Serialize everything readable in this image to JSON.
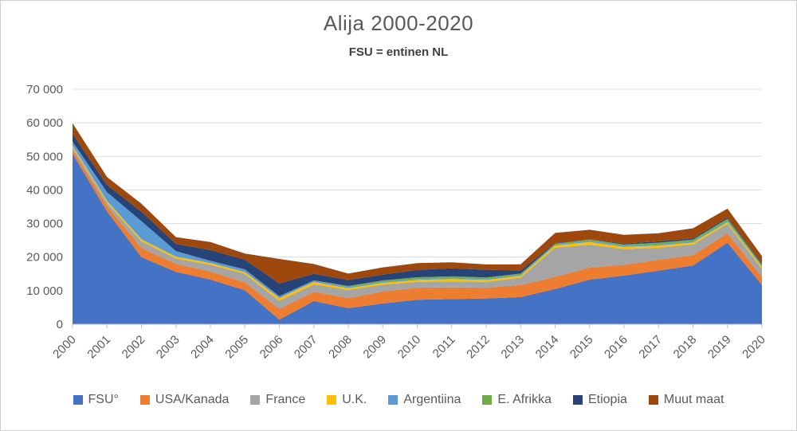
{
  "title": "Alija 2000-2020",
  "subtitle": "FSU = entinen NL",
  "chart_data": {
    "type": "area",
    "stacked": true,
    "title": "Alija 2000-2020",
    "subtitle": "FSU = entinen NL",
    "xlabel": "",
    "ylabel": "",
    "ylim": [
      0,
      70000
    ],
    "ytick_step": 10000,
    "ytick_labels": [
      "0",
      "10 000",
      "20 000",
      "30 000",
      "40 000",
      "50 000",
      "60 000",
      "70 000"
    ],
    "grid": true,
    "legend_position": "bottom",
    "x": [
      2000,
      2001,
      2002,
      2003,
      2004,
      2005,
      2006,
      2007,
      2008,
      2009,
      2010,
      2011,
      2012,
      2013,
      2014,
      2015,
      2016,
      2017,
      2018,
      2019,
      2020
    ],
    "series": [
      {
        "name": "FSU°",
        "color": "#4472C4",
        "values": [
          50800,
          33600,
          20000,
          15600,
          13300,
          10100,
          1400,
          6900,
          4800,
          6200,
          7300,
          7500,
          7700,
          8100,
          10500,
          13300,
          14500,
          16000,
          17500,
          24300,
          11700
        ]
      },
      {
        "name": "USA/Kanada",
        "color": "#ED7D31",
        "values": [
          1200,
          1600,
          2700,
          2400,
          2400,
          2400,
          3200,
          2800,
          3000,
          3600,
          3600,
          3500,
          3200,
          3600,
          3600,
          3600,
          3200,
          3200,
          3100,
          2800,
          2400
        ]
      },
      {
        "name": "France",
        "color": "#A5A5A5",
        "values": [
          800,
          1000,
          2000,
          1600,
          2000,
          2500,
          2400,
          2200,
          2400,
          2000,
          1700,
          1800,
          1700,
          2200,
          8700,
          6800,
          4700,
          3600,
          3200,
          2800,
          2400
        ]
      },
      {
        "name": "U.K.",
        "color": "#FFC000",
        "values": [
          400,
          550,
          600,
          550,
          550,
          550,
          800,
          700,
          550,
          550,
          600,
          650,
          600,
          550,
          650,
          800,
          650,
          650,
          550,
          550,
          550
        ]
      },
      {
        "name": "Argentiina",
        "color": "#5B9BD5",
        "values": [
          1200,
          2600,
          5400,
          1600,
          650,
          800,
          550,
          450,
          300,
          250,
          250,
          250,
          250,
          250,
          250,
          350,
          300,
          300,
          300,
          350,
          250
        ]
      },
      {
        "name": "E. Afrikka",
        "color": "#70AD47",
        "values": [
          0,
          0,
          0,
          0,
          0,
          0,
          0,
          0,
          350,
          450,
          550,
          550,
          480,
          400,
          300,
          400,
          400,
          550,
          550,
          640,
          400
        ]
      },
      {
        "name": "Etiopia",
        "color": "#264478",
        "values": [
          2300,
          2100,
          2800,
          2200,
          3200,
          2900,
          3800,
          2000,
          1800,
          1700,
          2200,
          2400,
          2300,
          950,
          200,
          100,
          300,
          400,
          400,
          400,
          300
        ]
      },
      {
        "name": "Muut maat",
        "color": "#9E480E",
        "values": [
          3200,
          2400,
          2400,
          2000,
          2400,
          1800,
          7300,
          2900,
          1900,
          2200,
          2000,
          1800,
          1600,
          1800,
          3000,
          2800,
          2600,
          2400,
          3000,
          2600,
          2300
        ]
      }
    ],
    "colors": {
      "grid": "#D9D9D9",
      "axis": "#BFBFBF",
      "tick_label": "#595959",
      "title_text": "#595959",
      "subtitle_text": "#3F3F3F"
    }
  }
}
